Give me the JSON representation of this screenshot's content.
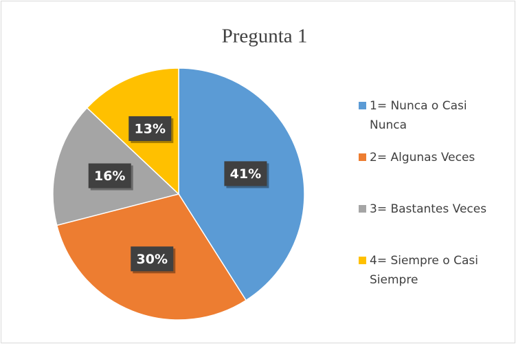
{
  "chart_data": {
    "type": "pie",
    "title": "Pregunta 1",
    "categories": [
      "1= Nunca o Casi Nunca",
      "2= Algunas Veces",
      "3= Bastantes Veces",
      "4= Siempre o Casi Siempre"
    ],
    "values": [
      41,
      30,
      16,
      13
    ],
    "value_labels": [
      "41%",
      "30%",
      "16%",
      "13%"
    ],
    "colors": [
      "#5b9bd5",
      "#ed7d31",
      "#a5a5a5",
      "#ffc000"
    ]
  }
}
